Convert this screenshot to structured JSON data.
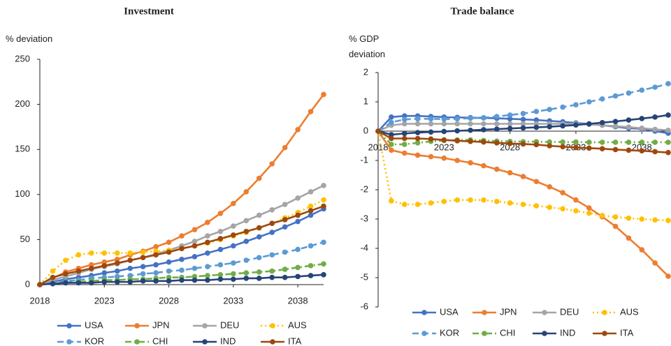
{
  "chart_data": [
    {
      "type": "line",
      "title": "Investment",
      "y_label": "% deviation",
      "x": [
        2018,
        2019,
        2020,
        2021,
        2022,
        2023,
        2024,
        2025,
        2026,
        2027,
        2028,
        2029,
        2030,
        2031,
        2032,
        2033,
        2034,
        2035,
        2036,
        2037,
        2038,
        2039,
        2040
      ],
      "xlim": [
        2018,
        2040
      ],
      "xticks": [
        2018,
        2023,
        2028,
        2033,
        2038
      ],
      "ylim": [
        0,
        250
      ],
      "yticks": [
        0,
        50,
        100,
        150,
        200,
        250
      ],
      "legend": "bottom",
      "series": [
        {
          "name": "USA",
          "color": "#4472c4",
          "dash": "solid",
          "values": [
            0,
            3,
            6,
            8,
            10,
            13,
            15,
            18,
            20,
            22,
            25,
            28,
            31,
            35,
            39,
            43,
            48,
            53,
            58,
            64,
            70,
            77,
            84
          ]
        },
        {
          "name": "JPN",
          "color": "#ed7d31",
          "dash": "solid",
          "values": [
            0,
            7,
            14,
            18,
            22,
            25,
            28,
            33,
            37,
            42,
            47,
            54,
            61,
            69,
            79,
            90,
            103,
            118,
            134,
            152,
            172,
            192,
            211
          ]
        },
        {
          "name": "DEU",
          "color": "#a5a5a5",
          "dash": "solid",
          "values": [
            0,
            5,
            9,
            13,
            17,
            20,
            23,
            27,
            30,
            34,
            38,
            43,
            48,
            54,
            59,
            65,
            71,
            77,
            83,
            89,
            96,
            103,
            110
          ]
        },
        {
          "name": "AUS",
          "color": "#ffc000",
          "dash": "dot",
          "values": [
            0,
            15,
            27,
            33,
            35,
            35,
            35,
            35,
            36,
            37,
            38,
            40,
            43,
            46,
            50,
            54,
            58,
            63,
            68,
            74,
            80,
            87,
            94
          ]
        },
        {
          "name": "KOR",
          "color": "#5b9bd5",
          "dash": "dash",
          "values": [
            0,
            2,
            4,
            5,
            7,
            8,
            9,
            10,
            12,
            13,
            15,
            16,
            18,
            20,
            22,
            24,
            27,
            30,
            33,
            36,
            39,
            43,
            47
          ]
        },
        {
          "name": "CHI",
          "color": "#70ad47",
          "dash": "dashdot",
          "values": [
            0,
            1,
            2,
            3,
            4,
            5,
            5,
            6,
            6,
            7,
            8,
            8,
            9,
            10,
            11,
            12,
            13,
            14,
            15,
            17,
            19,
            21,
            23
          ]
        },
        {
          "name": "IND",
          "color": "#264478",
          "dash": "solid",
          "values": [
            0,
            1,
            2,
            2,
            2,
            3,
            3,
            3,
            4,
            4,
            4,
            5,
            5,
            5,
            6,
            6,
            7,
            7,
            8,
            8,
            9,
            10,
            11
          ]
        },
        {
          "name": "ITA",
          "color": "#9e480e",
          "dash": "solid",
          "values": [
            0,
            8,
            12,
            15,
            18,
            21,
            24,
            27,
            30,
            33,
            36,
            40,
            43,
            47,
            51,
            55,
            59,
            63,
            68,
            72,
            77,
            82,
            87
          ]
        }
      ]
    },
    {
      "type": "line",
      "title": "Trade balance",
      "y_label": "% GDP deviation",
      "x": [
        2018,
        2019,
        2020,
        2021,
        2022,
        2023,
        2024,
        2025,
        2026,
        2027,
        2028,
        2029,
        2030,
        2031,
        2032,
        2033,
        2034,
        2035,
        2036,
        2037,
        2038,
        2039,
        2040
      ],
      "xlim": [
        2018,
        2040
      ],
      "xticks": [
        2018,
        2023,
        2028,
        2033,
        2038
      ],
      "ylim": [
        -6,
        2
      ],
      "yticks": [
        -6,
        -5,
        -4,
        -3,
        -2,
        -1,
        0,
        1,
        2
      ],
      "legend": "bottom",
      "series": [
        {
          "name": "USA",
          "color": "#4472c4",
          "dash": "solid",
          "values": [
            0,
            0.48,
            0.52,
            0.52,
            0.5,
            0.48,
            0.47,
            0.46,
            0.45,
            0.44,
            0.42,
            0.4,
            0.38,
            0.35,
            0.32,
            0.28,
            0.25,
            0.2,
            0.15,
            0.1,
            0.08,
            0.0,
            -0.07
          ]
        },
        {
          "name": "JPN",
          "color": "#ed7d31",
          "dash": "solid",
          "values": [
            0,
            -0.65,
            -0.75,
            -0.82,
            -0.87,
            -0.92,
            -1.0,
            -1.08,
            -1.18,
            -1.3,
            -1.42,
            -1.55,
            -1.72,
            -1.9,
            -2.1,
            -2.35,
            -2.62,
            -2.92,
            -3.25,
            -3.65,
            -4.05,
            -4.5,
            -4.95
          ]
        },
        {
          "name": "DEU",
          "color": "#a5a5a5",
          "dash": "solid",
          "values": [
            0,
            0.2,
            0.25,
            0.25,
            0.25,
            0.25,
            0.25,
            0.25,
            0.25,
            0.25,
            0.25,
            0.25,
            0.25,
            0.25,
            0.25,
            0.25,
            0.23,
            0.2,
            0.17,
            0.14,
            0.1,
            0.06,
            0.03
          ]
        },
        {
          "name": "AUS",
          "color": "#ffc000",
          "dash": "dot",
          "values": [
            0,
            -2.38,
            -2.5,
            -2.5,
            -2.45,
            -2.4,
            -2.35,
            -2.35,
            -2.35,
            -2.4,
            -2.45,
            -2.5,
            -2.55,
            -2.6,
            -2.65,
            -2.72,
            -2.8,
            -2.88,
            -2.93,
            -2.97,
            -3.0,
            -3.03,
            -3.05
          ]
        },
        {
          "name": "KOR",
          "color": "#5b9bd5",
          "dash": "dash",
          "values": [
            0,
            0.3,
            0.4,
            0.42,
            0.42,
            0.41,
            0.42,
            0.44,
            0.46,
            0.5,
            0.55,
            0.6,
            0.67,
            0.74,
            0.82,
            0.9,
            1.0,
            1.1,
            1.2,
            1.3,
            1.4,
            1.5,
            1.62
          ]
        },
        {
          "name": "CHI",
          "color": "#70ad47",
          "dash": "dashdot",
          "values": [
            0,
            -0.45,
            -0.45,
            -0.4,
            -0.35,
            -0.32,
            -0.3,
            -0.3,
            -0.32,
            -0.34,
            -0.35,
            -0.36,
            -0.36,
            -0.37,
            -0.37,
            -0.37,
            -0.38,
            -0.38,
            -0.38,
            -0.38,
            -0.38,
            -0.38,
            -0.38
          ]
        },
        {
          "name": "IND",
          "color": "#264478",
          "dash": "solid",
          "values": [
            0,
            -0.12,
            -0.08,
            -0.05,
            -0.03,
            -0.01,
            0.01,
            0.03,
            0.05,
            0.07,
            0.09,
            0.11,
            0.13,
            0.15,
            0.18,
            0.21,
            0.25,
            0.29,
            0.33,
            0.38,
            0.43,
            0.48,
            0.55
          ]
        },
        {
          "name": "ITA",
          "color": "#9e480e",
          "dash": "solid",
          "values": [
            0,
            -0.25,
            -0.25,
            -0.25,
            -0.27,
            -0.3,
            -0.33,
            -0.35,
            -0.37,
            -0.4,
            -0.42,
            -0.44,
            -0.46,
            -0.5,
            -0.53,
            -0.56,
            -0.58,
            -0.6,
            -0.63,
            -0.65,
            -0.67,
            -0.7,
            -0.73
          ]
        }
      ]
    }
  ]
}
